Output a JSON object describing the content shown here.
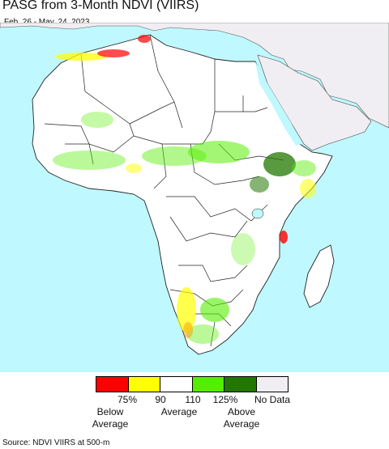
{
  "title": "PASG from 3-Month NDVI (VIIRS)",
  "subtitle": "Feb. 26 - May. 24, 2023",
  "source": "Source: NDVI VIIRS at 500-m",
  "colors": {
    "ocean": "#bff8ff",
    "land": "#ffffff",
    "non_africa_land": "#f0eef2",
    "border": "#222222"
  },
  "legend": {
    "swatches": [
      {
        "color": "#ff0000"
      },
      {
        "color": "#ffff00"
      },
      {
        "color": "#ffffff"
      },
      {
        "color": "#55ee00"
      },
      {
        "color": "#227700"
      },
      {
        "color": "#f0eef2"
      }
    ],
    "ticks": [
      "75%",
      "90",
      "110",
      "125%",
      "No Data"
    ],
    "captions": {
      "below": [
        "Below",
        "Average"
      ],
      "average": "Average",
      "above": [
        "Above",
        "Average"
      ]
    }
  }
}
